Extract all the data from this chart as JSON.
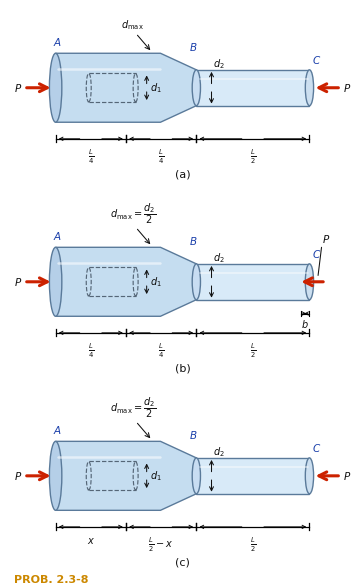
{
  "bg_color": "#ffffff",
  "bar_fill": "#c5ddf0",
  "bar_fill2": "#d8eaf8",
  "bar_edge": "#5a7a9a",
  "hole_edge": "#556677",
  "arrow_red": "#cc2200",
  "dim_color": "#111111",
  "label_blue": "#1a3faa",
  "prob_color": "#cc8800",
  "fig_width": 3.56,
  "fig_height": 5.88,
  "dpi": 100,
  "panels": [
    {
      "label": "(a)",
      "dmax_eq": false,
      "has_b_dim": false,
      "p_right_inside": false,
      "dims": [
        "\\frac{L}{4}",
        "\\frac{L}{4}",
        "\\frac{L}{2}"
      ]
    },
    {
      "label": "(b)",
      "dmax_eq": true,
      "has_b_dim": true,
      "p_right_inside": true,
      "dims": [
        "\\frac{L}{4}",
        "\\frac{L}{4}",
        "\\frac{L}{2}"
      ]
    },
    {
      "label": "(c)",
      "dmax_eq": true,
      "has_b_dim": false,
      "p_right_inside": false,
      "dims": [
        "x",
        "\\frac{L}{2}-x",
        "\\frac{L}{2}"
      ]
    }
  ]
}
